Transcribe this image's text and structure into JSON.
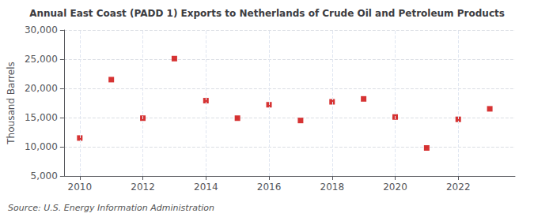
{
  "chart_data": {
    "type": "scatter",
    "title": "Annual East Coast (PADD 1) Exports to Netherlands of Crude Oil and Petroleum Products",
    "ylabel": "Thousand Barrels",
    "annotations": [
      "Source: U.S. Energy Information Administration"
    ],
    "x": [
      2010,
      2011,
      2012,
      2013,
      2014,
      2015,
      2016,
      2017,
      2018,
      2019,
      2020,
      2021,
      2022,
      2023
    ],
    "values": [
      11500,
      21500,
      14900,
      25100,
      17900,
      14900,
      17200,
      14500,
      17700,
      18200,
      15100,
      9800,
      14700,
      16500
    ],
    "color": "#cc0000",
    "marker": "square",
    "xlim": [
      2009.5,
      2023.8
    ],
    "xticks": [
      2010,
      2012,
      2014,
      2016,
      2018,
      2020,
      2022
    ],
    "ylim": [
      5000,
      30000
    ],
    "yticks": [
      {
        "value": 5000,
        "label": "5,000"
      },
      {
        "value": 10000,
        "label": "10,000"
      },
      {
        "value": 15000,
        "label": "15,000"
      },
      {
        "value": 20000,
        "label": "20,000"
      },
      {
        "value": 25000,
        "label": "25,000"
      },
      {
        "value": 30000,
        "label": "30,000"
      }
    ],
    "grid": true
  }
}
